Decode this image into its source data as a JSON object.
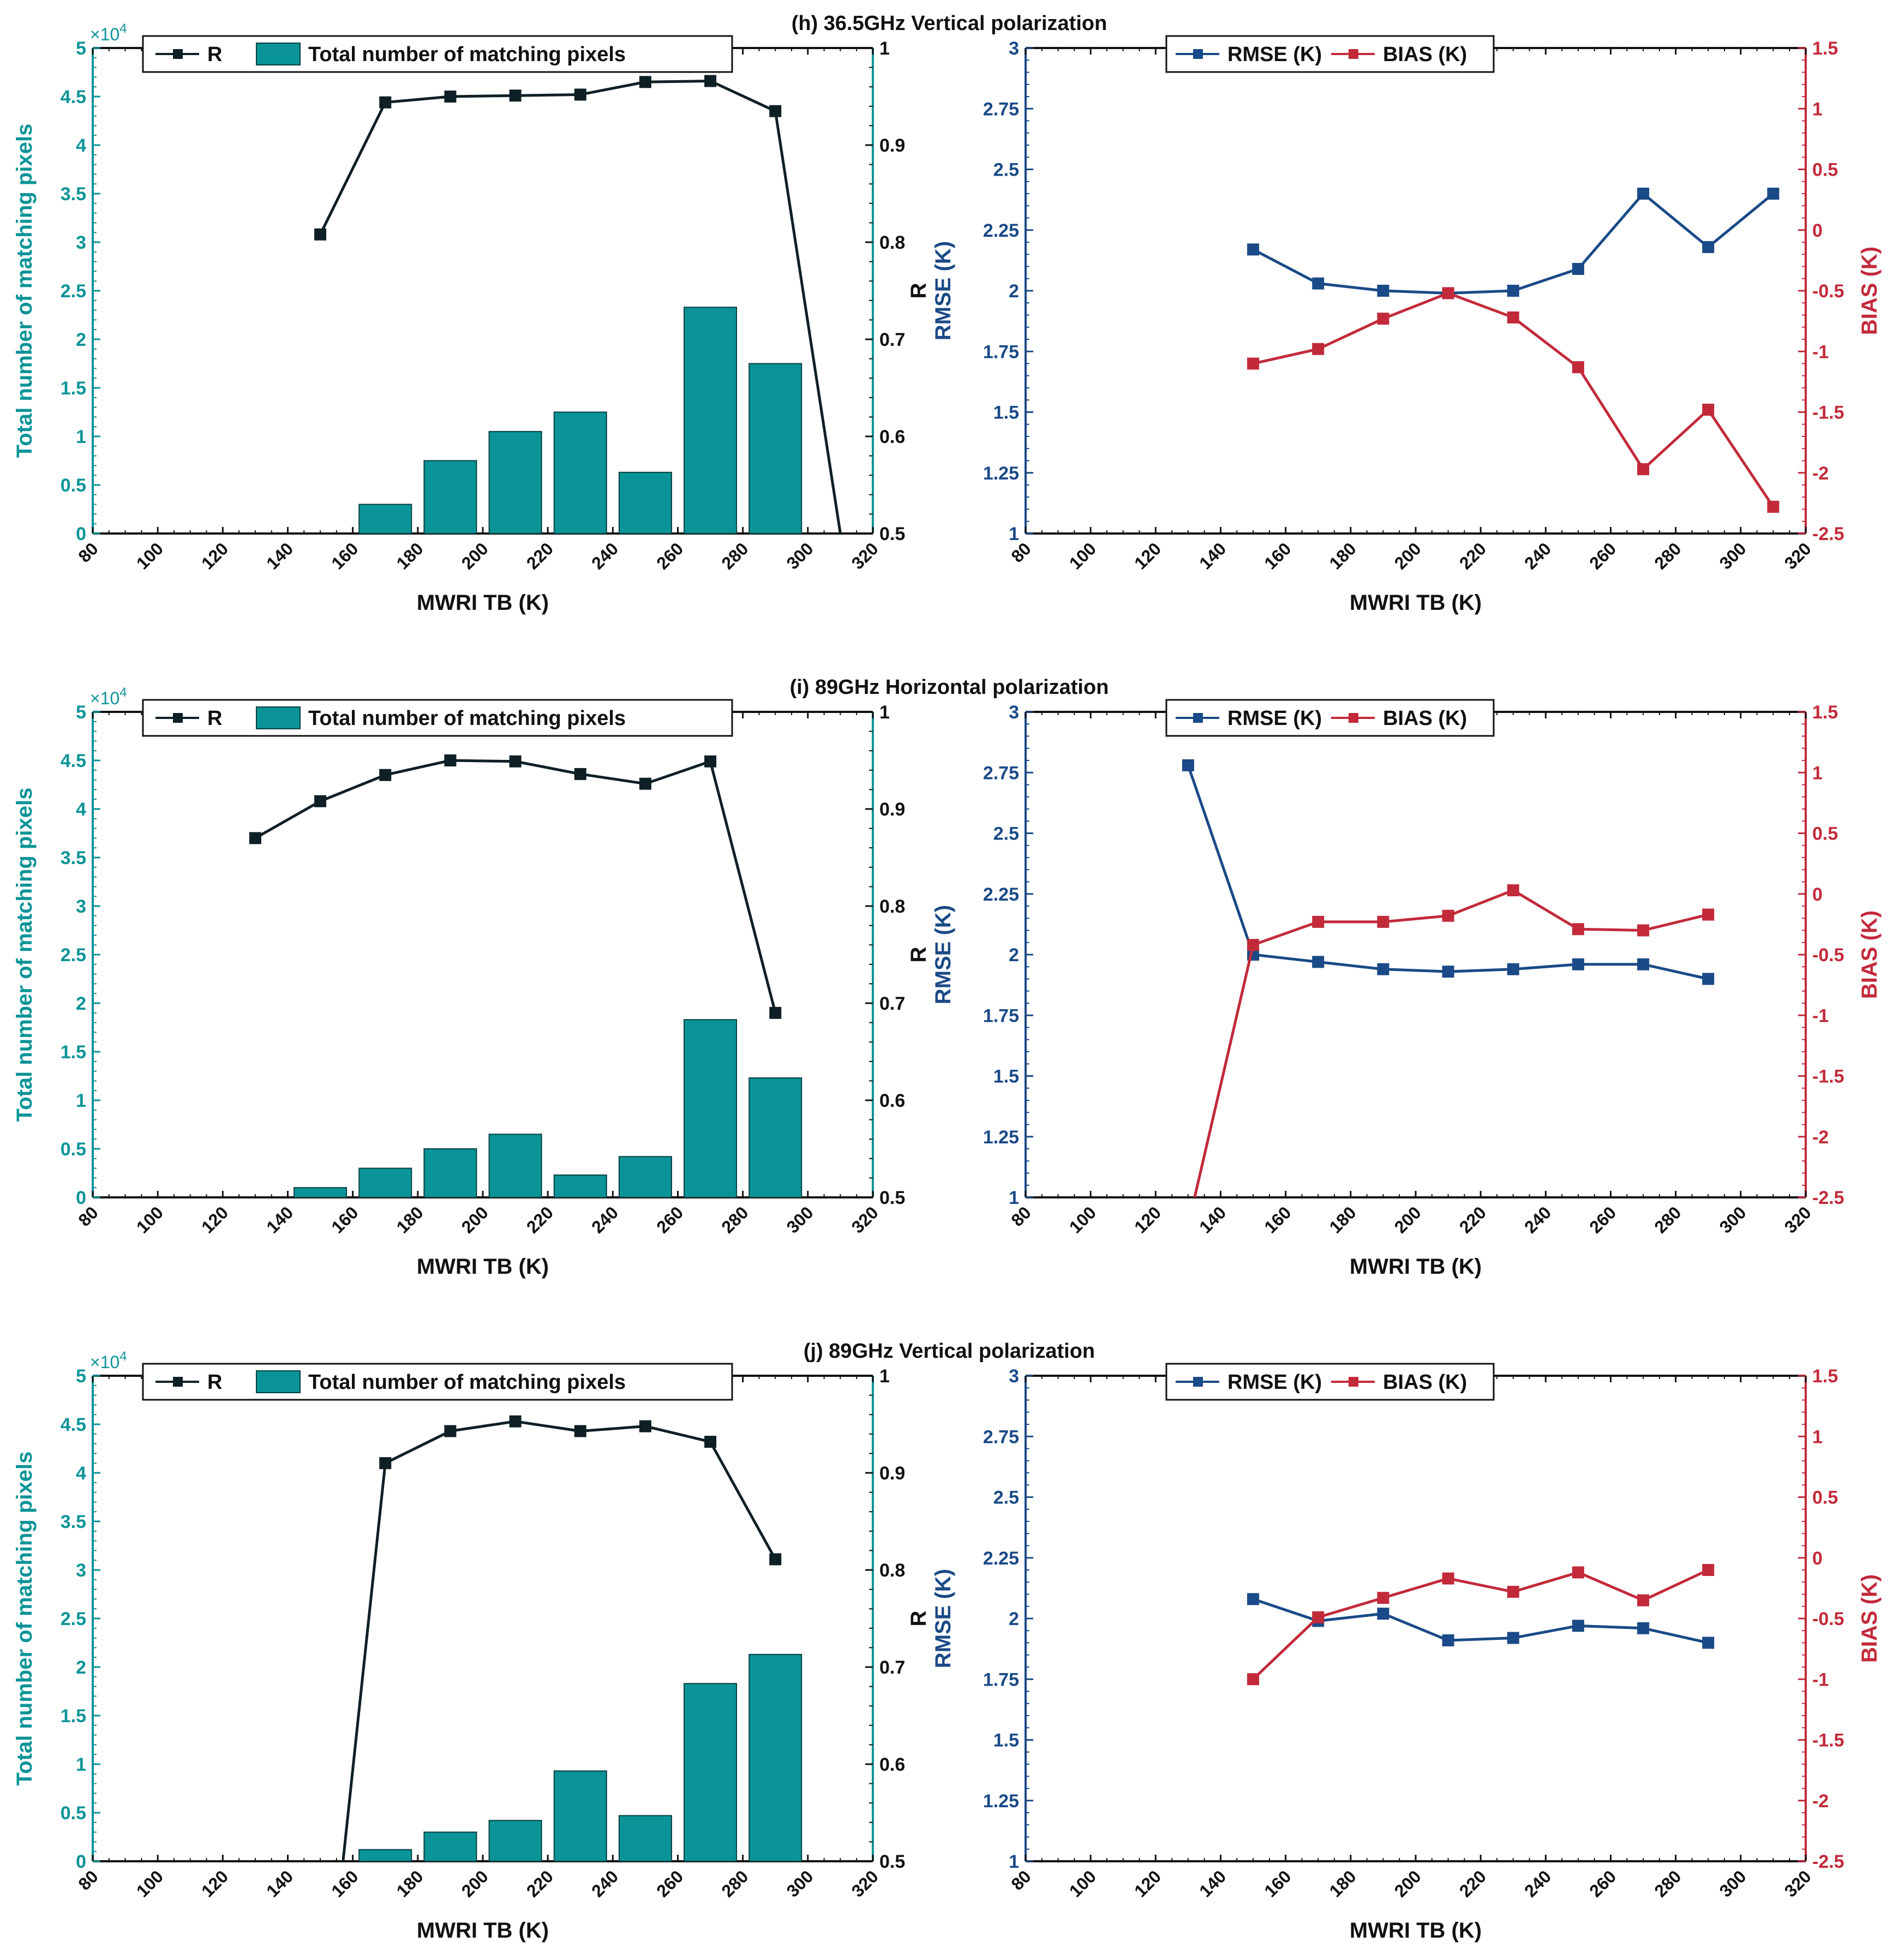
{
  "colors": {
    "teal": "#0b9497",
    "teal_edge": "#063f40",
    "navy": "#1a4a87",
    "red": "#c22a3a",
    "r_line": "#0f1f26",
    "axis": "#111111"
  },
  "shared": {
    "xlabel": "MWRI TB (K)",
    "left_ylabel": "Total number of matching pixels",
    "right_ylabel_left": "R",
    "rmse_label": "RMSE (K)",
    "bias_label": "BIAS (K)",
    "left_y_multiplier": "×10",
    "left_y_exponent": "4",
    "legend_left": [
      "R",
      "Total number of matching pixels"
    ],
    "legend_right": [
      "RMSE (K)",
      "BIAS (K)"
    ],
    "x_ticks": [
      "80",
      "100",
      "120",
      "140",
      "160",
      "180",
      "200",
      "220",
      "240",
      "260",
      "280",
      "300",
      "320"
    ],
    "x_range": [
      80,
      320
    ],
    "count_ticks": [
      "0",
      "0.5",
      "1",
      "1.5",
      "2",
      "2.5",
      "3",
      "3.5",
      "4",
      "4.5",
      "5"
    ],
    "count_range": [
      0,
      5
    ],
    "r_ticks": [
      "0.5",
      "0.6",
      "0.7",
      "0.8",
      "0.9",
      "1"
    ],
    "r_range": [
      0.5,
      1
    ],
    "rmse_ticks": [
      "1",
      "1.25",
      "1.5",
      "1.75",
      "2",
      "2.25",
      "2.5",
      "2.75",
      "3"
    ],
    "rmse_range": [
      1,
      3
    ],
    "bias_ticks": [
      "-2.5",
      "-2",
      "-1.5",
      "-1",
      "-0.5",
      "0",
      "0.5",
      "1",
      "1.5"
    ],
    "bias_range": [
      -2.5,
      1.5
    ]
  },
  "chart_data": [
    {
      "type": "bar",
      "title": "(h) 36.5GHz Vertical polarization",
      "x": [
        150,
        170,
        190,
        210,
        230,
        250,
        270,
        290,
        310
      ],
      "count_x": [
        170,
        190,
        210,
        230,
        250,
        270,
        290
      ],
      "count_values_1e4": [
        0.3,
        0.75,
        1.05,
        1.25,
        0.63,
        2.33,
        1.75
      ],
      "r": [
        0.808,
        0.944,
        0.95,
        0.951,
        0.952,
        0.965,
        0.966,
        0.935,
        0.5
      ],
      "rmse_x": [
        150,
        170,
        190,
        210,
        230,
        250,
        270,
        290,
        310
      ],
      "rmse": [
        2.17,
        2.03,
        2.0,
        1.99,
        2.0,
        2.09,
        2.4,
        2.18,
        2.4
      ],
      "bias_x": [
        150,
        170,
        190,
        210,
        230,
        250,
        270,
        290,
        310
      ],
      "bias": [
        -1.1,
        -0.98,
        -0.73,
        -0.52,
        -0.72,
        -1.13,
        -1.97,
        -1.48,
        -2.28
      ]
    },
    {
      "type": "bar",
      "title": "(i) 89GHz Horizontal polarization",
      "x": [
        130,
        150,
        170,
        190,
        210,
        230,
        250,
        270,
        290
      ],
      "count_x": [
        150,
        170,
        190,
        210,
        230,
        250,
        270,
        290
      ],
      "count_values_1e4": [
        0.1,
        0.3,
        0.5,
        0.65,
        0.23,
        0.42,
        1.83,
        1.23
      ],
      "r": [
        0.87,
        0.908,
        0.935,
        0.95,
        0.949,
        0.936,
        0.926,
        0.949,
        0.69
      ],
      "rmse_x": [
        130,
        150,
        170,
        190,
        210,
        230,
        250,
        270,
        290
      ],
      "rmse": [
        2.78,
        2.0,
        1.97,
        1.94,
        1.93,
        1.94,
        1.96,
        1.96,
        1.9
      ],
      "bias_x": [
        132,
        150,
        170,
        190,
        210,
        230,
        250,
        270,
        290
      ],
      "bias": [
        -2.5,
        -0.42,
        -0.23,
        -0.23,
        -0.18,
        0.03,
        -0.29,
        -0.3,
        -0.17
      ]
    },
    {
      "type": "bar",
      "title": "(j) 89GHz Vertical polarization",
      "x": [
        157,
        170,
        190,
        210,
        230,
        250,
        270,
        290
      ],
      "count_x": [
        170,
        190,
        210,
        230,
        250,
        270,
        290
      ],
      "count_values_1e4": [
        0.12,
        0.3,
        0.42,
        0.93,
        0.47,
        1.83,
        2.13
      ],
      "r": [
        0.5,
        0.91,
        0.943,
        0.953,
        0.943,
        0.948,
        0.932,
        0.811
      ],
      "rmse_x": [
        150,
        170,
        190,
        210,
        230,
        250,
        270,
        290
      ],
      "rmse": [
        2.08,
        1.99,
        2.02,
        1.91,
        1.92,
        1.97,
        1.96,
        1.9
      ],
      "bias_x": [
        150,
        170,
        190,
        210,
        230,
        250,
        270,
        290
      ],
      "bias": [
        -1.0,
        -0.49,
        -0.33,
        -0.17,
        -0.28,
        -0.12,
        -0.35,
        -0.1
      ]
    }
  ]
}
